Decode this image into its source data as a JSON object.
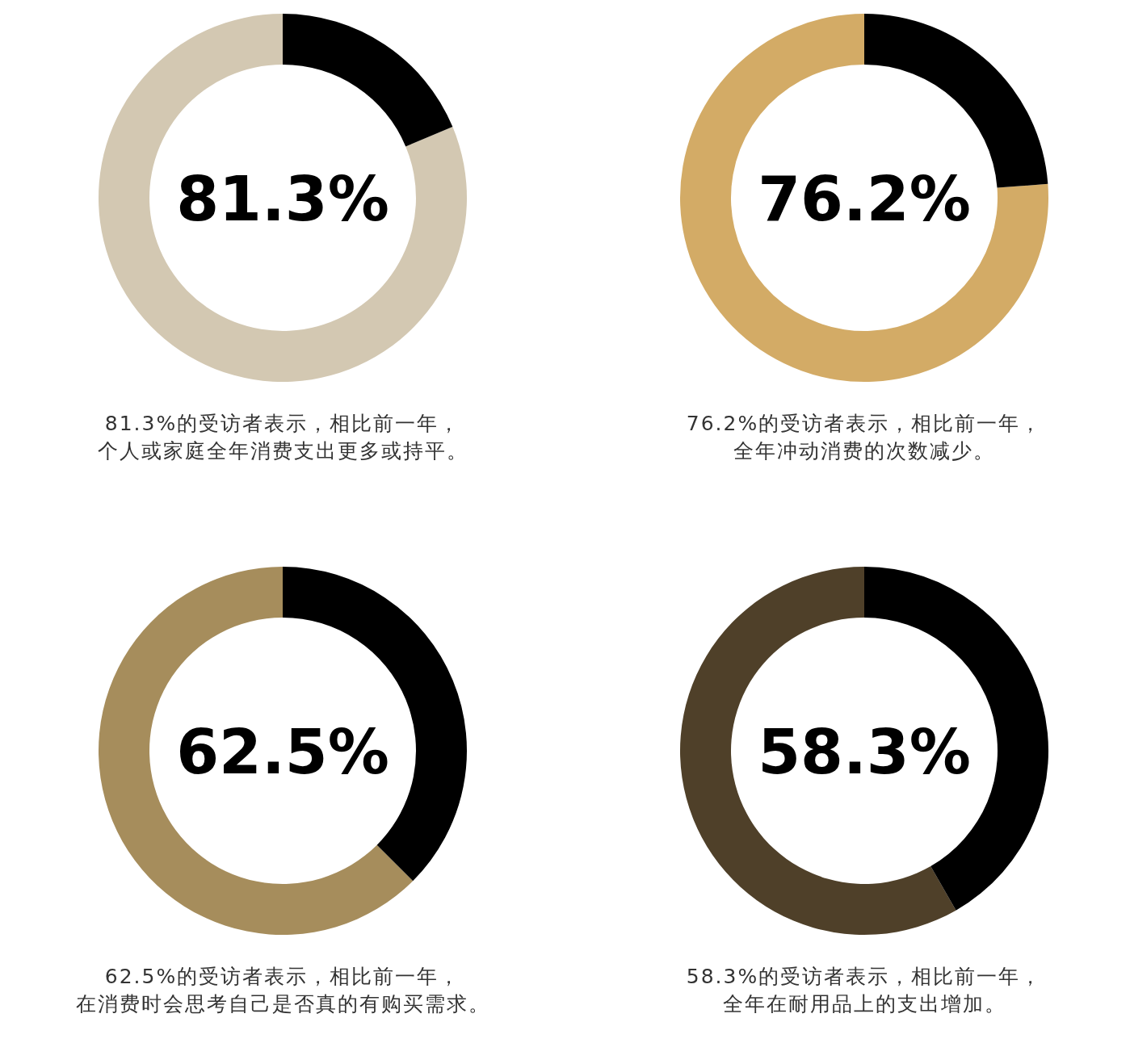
{
  "chart_data": [
    {
      "type": "donut",
      "categories": [
        null,
        null
      ],
      "values": [
        81.3,
        18.7
      ],
      "colors": [
        "#d3c8b2",
        "#000000"
      ],
      "value_labels": [
        "81.3%",
        null
      ],
      "annotations": [
        "81.3%的受访者表示，相比前一年，个人或家庭全年消费支出更多或持平。"
      ]
    },
    {
      "type": "donut",
      "categories": [
        null,
        null
      ],
      "values": [
        76.2,
        23.8
      ],
      "colors": [
        "#d3ab66",
        "#000000"
      ],
      "value_labels": [
        "76.2%",
        null
      ],
      "annotations": [
        "76.2%的受访者表示，相比前一年，全年冲动消费的次数减少。"
      ]
    },
    {
      "type": "donut",
      "categories": [
        null,
        null
      ],
      "values": [
        62.5,
        37.5
      ],
      "colors": [
        "#a68d5c",
        "#000000"
      ],
      "value_labels": [
        "62.5%",
        null
      ],
      "annotations": [
        "62.5%的受访者表示，相比前一年，在消费时会思考自己是否真的有购买需求。"
      ]
    },
    {
      "type": "donut",
      "categories": [
        null,
        null
      ],
      "values": [
        58.3,
        41.7
      ],
      "colors": [
        "#4f4029",
        "#000000"
      ],
      "value_labels": [
        "58.3%",
        null
      ],
      "annotations": [
        "58.3%的受访者表示，相比前一年，全年在耐用品上的支出增加。"
      ]
    }
  ]
}
